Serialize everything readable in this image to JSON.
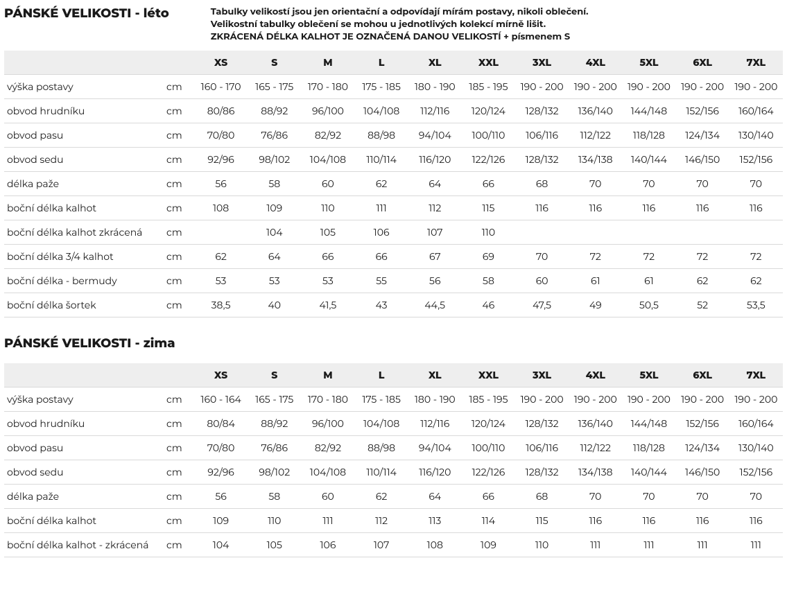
{
  "header": {
    "title1": "PÁNSKÉ VELIKOSTI - léto",
    "title2": "PÁNSKÉ VELIKOSTI - zima",
    "note1": "Tabulky velikostí jsou jen orientační a odpovídají mírám postavy, nikoli oblečení.",
    "note2": "Velikostní tabulky oblečení se mohou u jednotlivých kolekcí mírně lišit.",
    "note3": "ZKRÁCENÁ DÉLKA KALHOT JE OZNAČENÁ DANOU VELIKOSTÍ + písmenem S"
  },
  "sizes": [
    "XS",
    "S",
    "M",
    "L",
    "XL",
    "XXL",
    "3XL",
    "4XL",
    "5XL",
    "6XL",
    "7XL"
  ],
  "unit": "cm",
  "summer": {
    "columns_bg": "#eeeeee",
    "border_color": "#d9d9d9",
    "rows": [
      {
        "label": "výška postavy",
        "vals": [
          "160 - 170",
          "165 - 175",
          "170 - 180",
          "175 - 185",
          "180 - 190",
          "185 - 195",
          "190 - 200",
          "190 - 200",
          "190 - 200",
          "190 - 200",
          "190 - 200"
        ]
      },
      {
        "label": "obvod hrudníku",
        "vals": [
          "80/86",
          "88/92",
          "96/100",
          "104/108",
          "112/116",
          "120/124",
          "128/132",
          "136/140",
          "144/148",
          "152/156",
          "160/164"
        ]
      },
      {
        "label": "obvod pasu",
        "vals": [
          "70/80",
          "76/86",
          "82/92",
          "88/98",
          "94/104",
          "100/110",
          "106/116",
          "112/122",
          "118/128",
          "124/134",
          "130/140"
        ]
      },
      {
        "label": "obvod sedu",
        "vals": [
          "92/96",
          "98/102",
          "104/108",
          "110/114",
          "116/120",
          "122/126",
          "128/132",
          "134/138",
          "140/144",
          "146/150",
          "152/156"
        ]
      },
      {
        "label": "délka paže",
        "vals": [
          "56",
          "58",
          "60",
          "62",
          "64",
          "66",
          "68",
          "70",
          "70",
          "70",
          "70"
        ]
      },
      {
        "label": "boční délka kalhot",
        "vals": [
          "108",
          "109",
          "110",
          "111",
          "112",
          "115",
          "116",
          "116",
          "116",
          "116",
          "116"
        ]
      },
      {
        "label": "boční délka kalhot zkrácená",
        "vals": [
          "",
          "104",
          "105",
          "106",
          "107",
          "110",
          "",
          "",
          "",
          "",
          ""
        ]
      },
      {
        "label": "boční délka 3/4 kalhot",
        "vals": [
          "62",
          "64",
          "66",
          "66",
          "67",
          "69",
          "70",
          "72",
          "72",
          "72",
          "72"
        ]
      },
      {
        "label": "boční délka - bermudy",
        "vals": [
          "53",
          "53",
          "53",
          "55",
          "56",
          "58",
          "60",
          "61",
          "61",
          "62",
          "62"
        ]
      },
      {
        "label": "boční délka šortek",
        "vals": [
          "38,5",
          "40",
          "41,5",
          "43",
          "44,5",
          "46",
          "47,5",
          "49",
          "50,5",
          "52",
          "53,5"
        ]
      }
    ]
  },
  "winter": {
    "rows": [
      {
        "label": "výška postavy",
        "vals": [
          "160 - 164",
          "165 - 175",
          "170 - 180",
          "175 - 185",
          "180 - 190",
          "185 - 195",
          "190 - 200",
          "190 - 200",
          "190 - 200",
          "190 - 200",
          "190 - 200"
        ]
      },
      {
        "label": "obvod hrudníku",
        "vals": [
          "80/84",
          "88/92",
          "96/100",
          "104/108",
          "112/116",
          "120/124",
          "128/132",
          "136/140",
          "144/148",
          "152/156",
          "160/164"
        ]
      },
      {
        "label": "obvod pasu",
        "vals": [
          "70/80",
          "76/86",
          "82/92",
          "88/98",
          "94/104",
          "100/110",
          "106/116",
          "112/122",
          "118/128",
          "124/134",
          "130/140"
        ]
      },
      {
        "label": "obvod sedu",
        "vals": [
          "92/96",
          "98/102",
          "104/108",
          "110/114",
          "116/120",
          "122/126",
          "128/132",
          "134/138",
          "140/144",
          "146/150",
          "152/156"
        ]
      },
      {
        "label": "délka paže",
        "vals": [
          "56",
          "58",
          "60",
          "62",
          "64",
          "66",
          "68",
          "70",
          "70",
          "70",
          "70"
        ]
      },
      {
        "label": "boční délka kalhot",
        "vals": [
          "109",
          "110",
          "111",
          "112",
          "113",
          "114",
          "115",
          "116",
          "116",
          "116",
          "116"
        ]
      },
      {
        "label": "boční délka kalhot - zkrácená",
        "vals": [
          "104",
          "105",
          "106",
          "107",
          "108",
          "109",
          "110",
          "111",
          "111",
          "111",
          "111"
        ]
      }
    ]
  }
}
